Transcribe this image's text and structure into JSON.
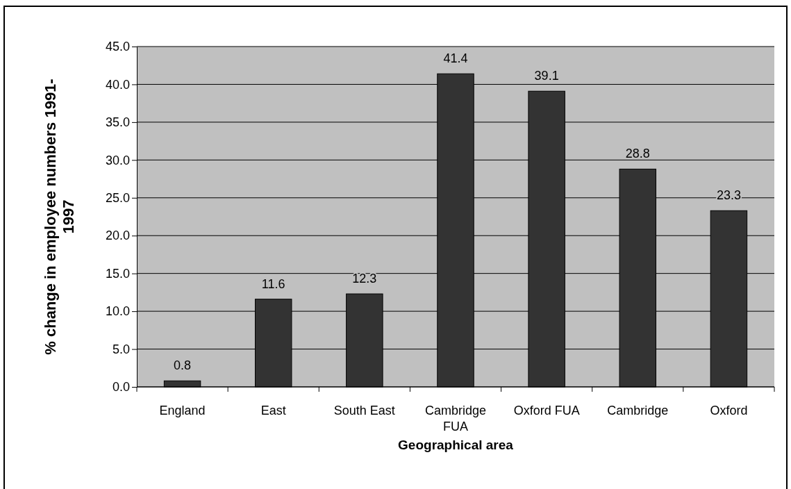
{
  "chart_data": {
    "type": "bar",
    "xlabel": "Geographical area",
    "ylabel": "% change in employee numbers 1991-1997",
    "categories": [
      "England",
      "East",
      "South East",
      "Cambridge FUA",
      "Oxford FUA",
      "Cambridge",
      "Oxford"
    ],
    "values": [
      0.8,
      11.6,
      12.3,
      41.4,
      39.1,
      28.8,
      23.3
    ],
    "color": "#333333",
    "ylim": [
      0,
      45
    ],
    "yticks": [
      {
        "value": 0,
        "label": "0.0"
      },
      {
        "value": 5,
        "label": "5.0"
      },
      {
        "value": 10,
        "label": "10.0"
      },
      {
        "value": 15,
        "label": "15.0"
      },
      {
        "value": 20,
        "label": "20.0"
      },
      {
        "value": 25,
        "label": "25.0"
      },
      {
        "value": 30,
        "label": "30.0"
      },
      {
        "value": 35,
        "label": "35.0"
      },
      {
        "value": 40,
        "label": "40.0"
      },
      {
        "value": 45,
        "label": "45.0"
      }
    ],
    "grid": "y",
    "data_labels": true
  }
}
